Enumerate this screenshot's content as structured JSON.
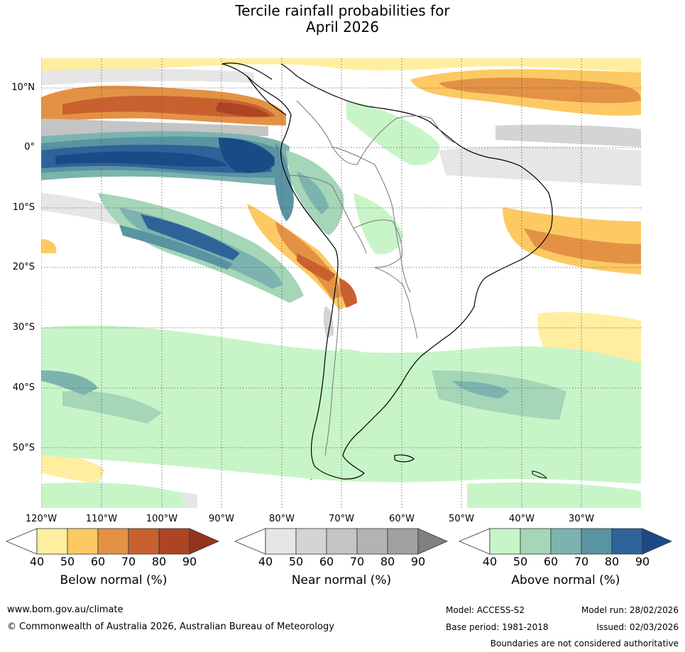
{
  "title_line1": "Tercile rainfall probabilities for",
  "title_line2": "April 2026",
  "lat_labels": [
    "10°N",
    "0°",
    "10°S",
    "20°S",
    "30°S",
    "40°S",
    "50°S"
  ],
  "lon_labels": [
    "120°W",
    "110°W",
    "100°W",
    "90°W",
    "80°W",
    "70°W",
    "60°W",
    "50°W",
    "40°W",
    "30°W"
  ],
  "colorbars": [
    {
      "label": "Below normal (%)",
      "ticks": [
        "40",
        "50",
        "60",
        "70",
        "80",
        "90"
      ],
      "colors": [
        "#ffeea0",
        "#fdc963",
        "#e39245",
        "#c9612f",
        "#ad4424",
        "#943420"
      ]
    },
    {
      "label": "Near normal (%)",
      "ticks": [
        "40",
        "50",
        "60",
        "70",
        "80",
        "90"
      ],
      "colors": [
        "#e6e6e6",
        "#d4d4d4",
        "#c4c4c4",
        "#b3b3b3",
        "#a1a1a1",
        "#808080"
      ]
    },
    {
      "label": "Above normal (%)",
      "ticks": [
        "40",
        "50",
        "60",
        "70",
        "80",
        "90"
      ],
      "colors": [
        "#c8f5c8",
        "#a4d6b7",
        "#7db3af",
        "#5a93a2",
        "#2e6399",
        "#1a4b86"
      ]
    }
  ],
  "footer": {
    "url": "www.bom.gov.au/climate",
    "copyright": "© Commonwealth of Australia 2026, Australian Bureau of Meteorology",
    "model": "Model: ACCESS-S2",
    "model_run": "Model run: 28/02/2026",
    "base_period": "Base period: 1981-2018",
    "issued": "Issued: 02/03/2026",
    "disclaimer": "Boundaries are not considered authoritative"
  }
}
